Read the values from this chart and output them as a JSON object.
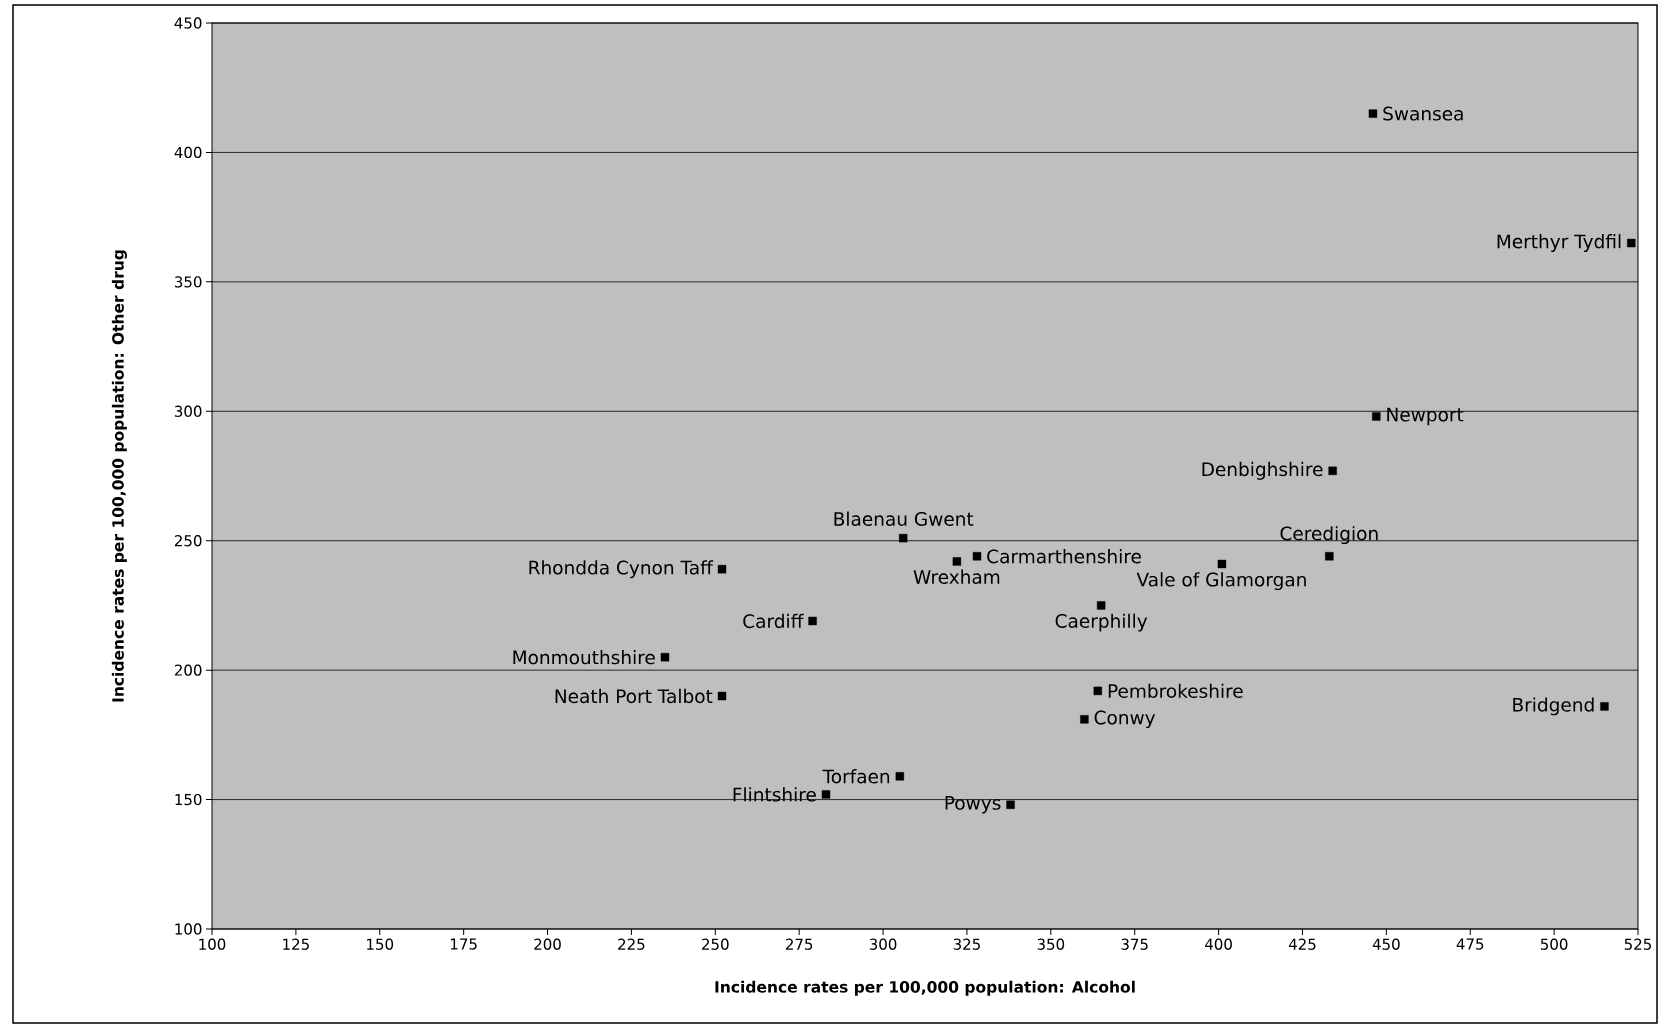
{
  "chart_data": {
    "type": "scatter",
    "xlabel": "Incidence rates per 100,000 population: Alcohol",
    "ylabel": "Incidence rates per 100,000 population: Other drug",
    "xlim": [
      100,
      525
    ],
    "ylim": [
      100,
      450
    ],
    "xticks": [
      100,
      125,
      150,
      175,
      200,
      225,
      250,
      275,
      300,
      325,
      350,
      375,
      400,
      425,
      450,
      475,
      500,
      525
    ],
    "yticks": [
      100,
      150,
      200,
      250,
      300,
      350,
      400,
      450
    ],
    "grid": "y",
    "marker": "square",
    "series": [
      {
        "color": "#000000",
        "x": [
          446,
          523,
          447,
          434,
          433,
          401,
          365,
          328,
          322,
          306,
          252,
          279,
          235,
          252,
          364,
          360,
          515,
          305,
          283,
          338
        ],
        "values": [
          415,
          365,
          298,
          277,
          244,
          241,
          225,
          244,
          242,
          251,
          239,
          219,
          205,
          190,
          192,
          181,
          186,
          159,
          152,
          148
        ]
      }
    ],
    "annotations": [
      {
        "text": "Swansea",
        "x": 446,
        "y": 415
      },
      {
        "text": "Merthyr Tydfil",
        "x": 523,
        "y": 365
      },
      {
        "text": "Newport",
        "x": 447,
        "y": 298
      },
      {
        "text": "Denbighshire",
        "x": 434,
        "y": 277
      },
      {
        "text": "Ceredigion",
        "x": 433,
        "y": 244
      },
      {
        "text": "Vale of Glamorgan",
        "x": 401,
        "y": 241
      },
      {
        "text": "Caerphilly",
        "x": 365,
        "y": 225
      },
      {
        "text": "Carmarthenshire",
        "x": 328,
        "y": 244
      },
      {
        "text": "Wrexham",
        "x": 322,
        "y": 242
      },
      {
        "text": "Blaenau Gwent",
        "x": 306,
        "y": 251
      },
      {
        "text": "Rhondda Cynon Taff",
        "x": 252,
        "y": 239
      },
      {
        "text": "Cardiff",
        "x": 279,
        "y": 219
      },
      {
        "text": "Monmouthshire",
        "x": 235,
        "y": 205
      },
      {
        "text": "Neath Port Talbot",
        "x": 252,
        "y": 190
      },
      {
        "text": "Pembrokeshire",
        "x": 364,
        "y": 192
      },
      {
        "text": "Conwy",
        "x": 360,
        "y": 181
      },
      {
        "text": "Bridgend",
        "x": 515,
        "y": 186
      },
      {
        "text": "Torfaen",
        "x": 305,
        "y": 159
      },
      {
        "text": "Flintshire",
        "x": 283,
        "y": 152
      },
      {
        "text": "Powys",
        "x": 338,
        "y": 148
      }
    ]
  }
}
